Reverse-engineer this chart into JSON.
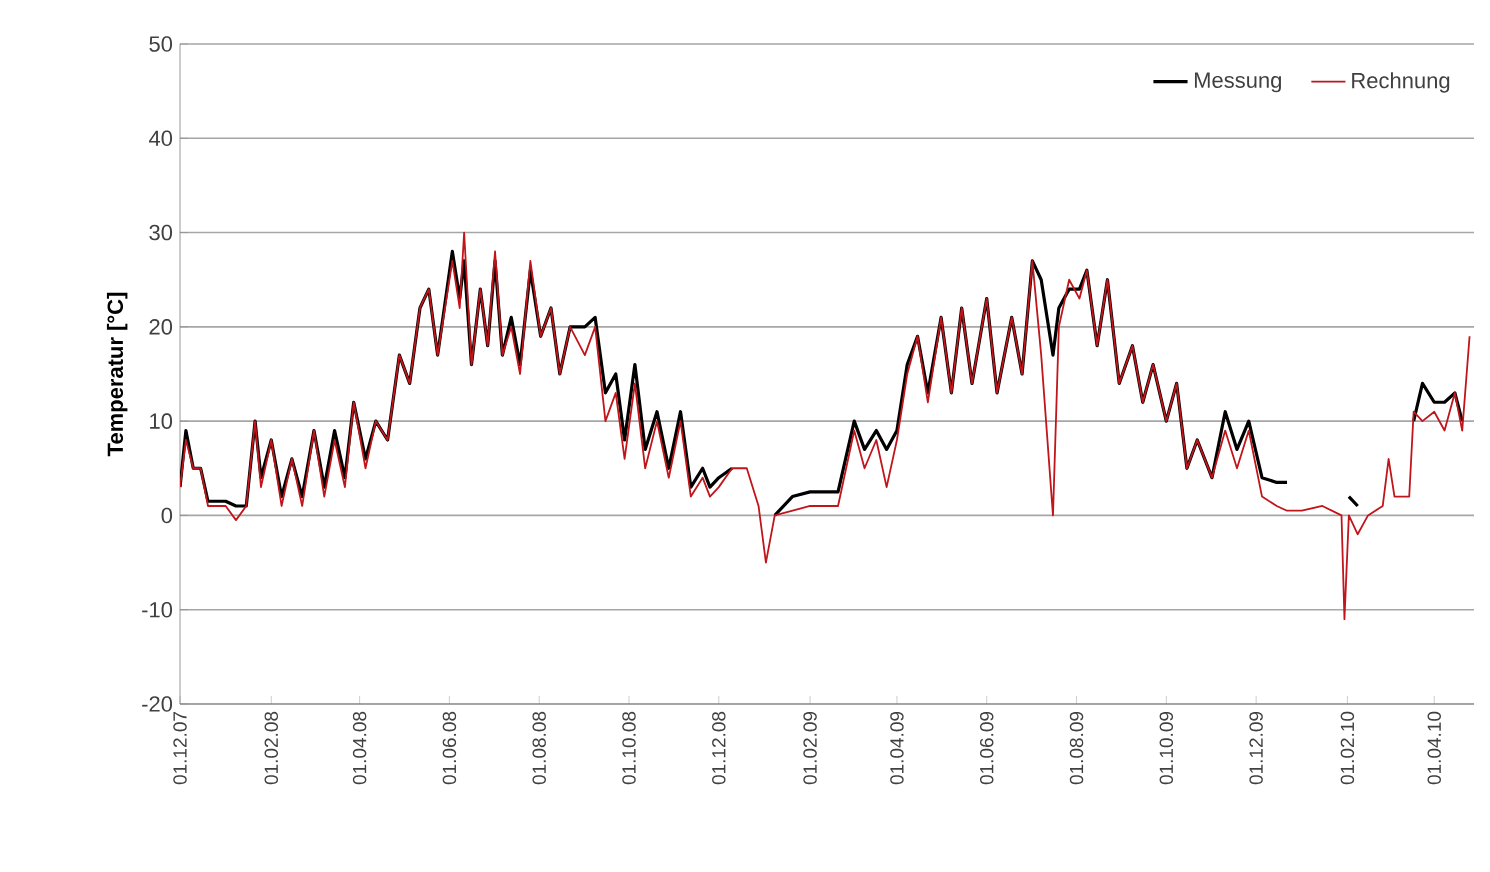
{
  "chart_data": {
    "type": "line",
    "ylabel": "Temperatur [°C]",
    "x": [
      "2007-12-01",
      "2007-12-05",
      "2007-12-10",
      "2007-12-15",
      "2007-12-20",
      "2008-01-01",
      "2008-01-08",
      "2008-01-15",
      "2008-01-21",
      "2008-01-25",
      "2008-02-01",
      "2008-02-08",
      "2008-02-15",
      "2008-02-22",
      "2008-03-01",
      "2008-03-08",
      "2008-03-15",
      "2008-03-22",
      "2008-03-28",
      "2008-04-05",
      "2008-04-12",
      "2008-04-20",
      "2008-04-28",
      "2008-05-05",
      "2008-05-12",
      "2008-05-18",
      "2008-05-24",
      "2008-06-03",
      "2008-06-08",
      "2008-06-11",
      "2008-06-16",
      "2008-06-22",
      "2008-06-27",
      "2008-07-02",
      "2008-07-07",
      "2008-07-13",
      "2008-07-19",
      "2008-07-26",
      "2008-08-02",
      "2008-08-09",
      "2008-08-15",
      "2008-08-22",
      "2008-09-01",
      "2008-09-08",
      "2008-09-15",
      "2008-09-22",
      "2008-09-28",
      "2008-10-05",
      "2008-10-12",
      "2008-10-20",
      "2008-10-28",
      "2008-11-05",
      "2008-11-12",
      "2008-11-20",
      "2008-11-25",
      "2008-12-01",
      "2008-12-10",
      "2008-12-20",
      "2008-12-28",
      "2009-01-02",
      "2009-01-08",
      "2009-01-20",
      "2009-02-01",
      "2009-02-10",
      "2009-02-20",
      "2009-03-03",
      "2009-03-10",
      "2009-03-18",
      "2009-03-25",
      "2009-04-01",
      "2009-04-08",
      "2009-04-15",
      "2009-04-22",
      "2009-05-01",
      "2009-05-08",
      "2009-05-15",
      "2009-05-22",
      "2009-06-01",
      "2009-06-08",
      "2009-06-18",
      "2009-06-25",
      "2009-07-02",
      "2009-07-08",
      "2009-07-16",
      "2009-07-20",
      "2009-07-27",
      "2009-08-03",
      "2009-08-08",
      "2009-08-15",
      "2009-08-22",
      "2009-08-30",
      "2009-09-08",
      "2009-09-15",
      "2009-09-22",
      "2009-10-01",
      "2009-10-08",
      "2009-10-15",
      "2009-10-22",
      "2009-11-01",
      "2009-11-10",
      "2009-11-18",
      "2009-11-26",
      "2009-12-05",
      "2009-12-15",
      "2009-12-22",
      "2010-01-01",
      "2010-01-15",
      "2010-01-28",
      "2010-01-30",
      "2010-02-02",
      "2010-02-08",
      "2010-02-15",
      "2010-02-25",
      "2010-03-01",
      "2010-03-05",
      "2010-03-15",
      "2010-03-18",
      "2010-03-24",
      "2010-04-01",
      "2010-04-08",
      "2010-04-15",
      "2010-04-20",
      "2010-04-25"
    ],
    "series": [
      {
        "name": "Messung",
        "color": "#000000",
        "values": [
          3,
          9,
          5,
          5,
          1.5,
          1.5,
          1,
          1,
          10,
          4,
          8,
          2,
          6,
          2,
          9,
          3,
          9,
          4,
          12,
          6,
          10,
          8,
          17,
          14,
          22,
          24,
          17,
          28,
          23,
          27,
          16,
          24,
          18,
          27,
          17,
          21,
          16,
          26,
          19,
          22,
          15,
          20,
          20,
          21,
          13,
          15,
          8,
          16,
          7,
          11,
          5,
          11,
          3,
          5,
          3,
          4,
          5,
          null,
          null,
          null,
          0,
          2,
          2.5,
          2.5,
          2.5,
          10,
          7,
          9,
          7,
          9,
          16,
          19,
          13,
          21,
          13,
          22,
          14,
          23,
          13,
          21,
          15,
          27,
          25,
          17,
          22,
          24,
          24,
          26,
          18,
          25,
          14,
          18,
          12,
          16,
          10,
          14,
          5,
          8,
          4,
          11,
          7,
          10,
          4,
          3.5,
          3.5,
          null,
          null,
          null,
          null,
          2,
          1,
          null,
          null,
          null,
          null,
          null,
          10,
          14,
          12,
          12,
          13,
          10,
          null
        ]
      },
      {
        "name": "Rechnung",
        "color": "#c0151b",
        "values": [
          3,
          8,
          5,
          5,
          1,
          1,
          -0.5,
          1,
          10,
          3,
          8,
          1,
          6,
          1,
          9,
          2,
          8,
          3,
          12,
          5,
          10,
          8,
          17,
          14,
          22,
          24,
          17,
          27,
          22,
          30,
          16,
          24,
          18,
          28,
          17,
          20,
          15,
          27,
          19,
          22,
          15,
          20,
          17,
          20,
          10,
          13,
          6,
          14,
          5,
          10,
          4,
          10,
          2,
          4,
          2,
          3,
          5,
          5,
          1,
          -5,
          0,
          0.5,
          1,
          1,
          1,
          9,
          5,
          8,
          3,
          8,
          15,
          19,
          12,
          21,
          13,
          22,
          14,
          23,
          13,
          21,
          15,
          27,
          17,
          0,
          20,
          25,
          23,
          26,
          18,
          25,
          14,
          18,
          12,
          16,
          10,
          14,
          5,
          8,
          4,
          9,
          5,
          9,
          2,
          1,
          0.5,
          0.5,
          1,
          0,
          -11,
          0,
          -2,
          0,
          1,
          6,
          2,
          2,
          11,
          10,
          11,
          9,
          13,
          9,
          19
        ]
      }
    ],
    "xlim": [
      "2007-12-01",
      "2010-04-28"
    ],
    "xticks": [
      {
        "value": "2007-12-01",
        "label": "01.12.07"
      },
      {
        "value": "2008-02-01",
        "label": "01.02.08"
      },
      {
        "value": "2008-04-01",
        "label": "01.04.08"
      },
      {
        "value": "2008-06-01",
        "label": "01.06.08"
      },
      {
        "value": "2008-08-01",
        "label": "01.08.08"
      },
      {
        "value": "2008-10-01",
        "label": "01.10.08"
      },
      {
        "value": "2008-12-01",
        "label": "01.12.08"
      },
      {
        "value": "2009-02-01",
        "label": "01.02.09"
      },
      {
        "value": "2009-04-01",
        "label": "01.04.09"
      },
      {
        "value": "2009-06-01",
        "label": "01.06.09"
      },
      {
        "value": "2009-08-01",
        "label": "01.08.09"
      },
      {
        "value": "2009-10-01",
        "label": "01.10.09"
      },
      {
        "value": "2009-12-01",
        "label": "01.12.09"
      },
      {
        "value": "2010-02-01",
        "label": "01.02.10"
      },
      {
        "value": "2010-04-01",
        "label": "01.04.10"
      }
    ],
    "ylim": [
      -20,
      50
    ],
    "yticks": [
      -20,
      -10,
      0,
      10,
      20,
      30,
      40,
      50
    ],
    "grid": "y",
    "legend": "top right"
  }
}
